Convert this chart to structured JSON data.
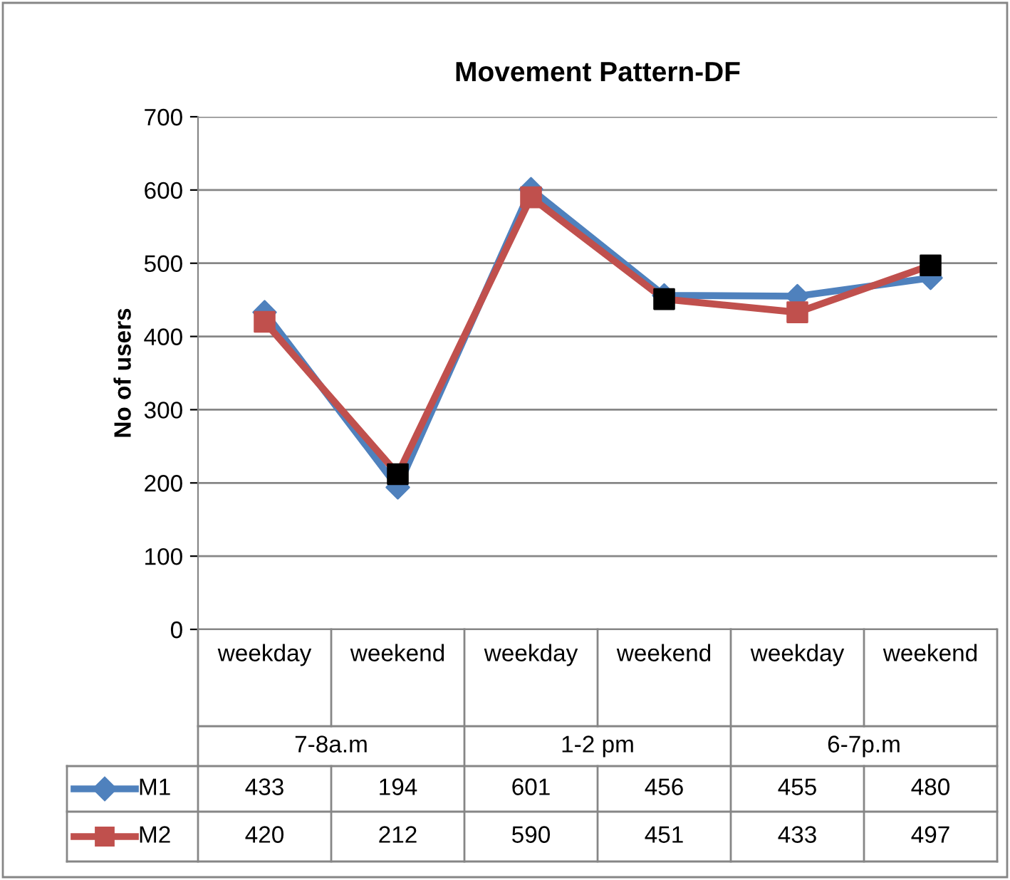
{
  "chart_data": {
    "type": "line",
    "title": "Movement Pattern-DF",
    "ylabel": "No of users",
    "categories": [
      "weekday",
      "weekend",
      "weekday",
      "weekend",
      "weekday",
      "weekend"
    ],
    "annotations": [
      "7-8a.m",
      "1-2 pm",
      "6-7p.m"
    ],
    "series": [
      {
        "name": "M1",
        "color": "#4f81bd",
        "marker": "diamond",
        "values": [
          433,
          194,
          601,
          456,
          455,
          480
        ]
      },
      {
        "name": "M2",
        "color": "#c0504d",
        "marker": "square",
        "colors": [
          "#c0504d",
          "#000000",
          "#c0504d",
          "#000000",
          "#c0504d",
          "#000000"
        ],
        "values": [
          420,
          212,
          590,
          451,
          433,
          497
        ]
      }
    ],
    "ylim": [
      0,
      700
    ],
    "yticks": [
      0,
      100,
      200,
      300,
      400,
      500,
      600,
      700
    ],
    "grid": "y",
    "data_labels": true,
    "legend": "bottom"
  }
}
